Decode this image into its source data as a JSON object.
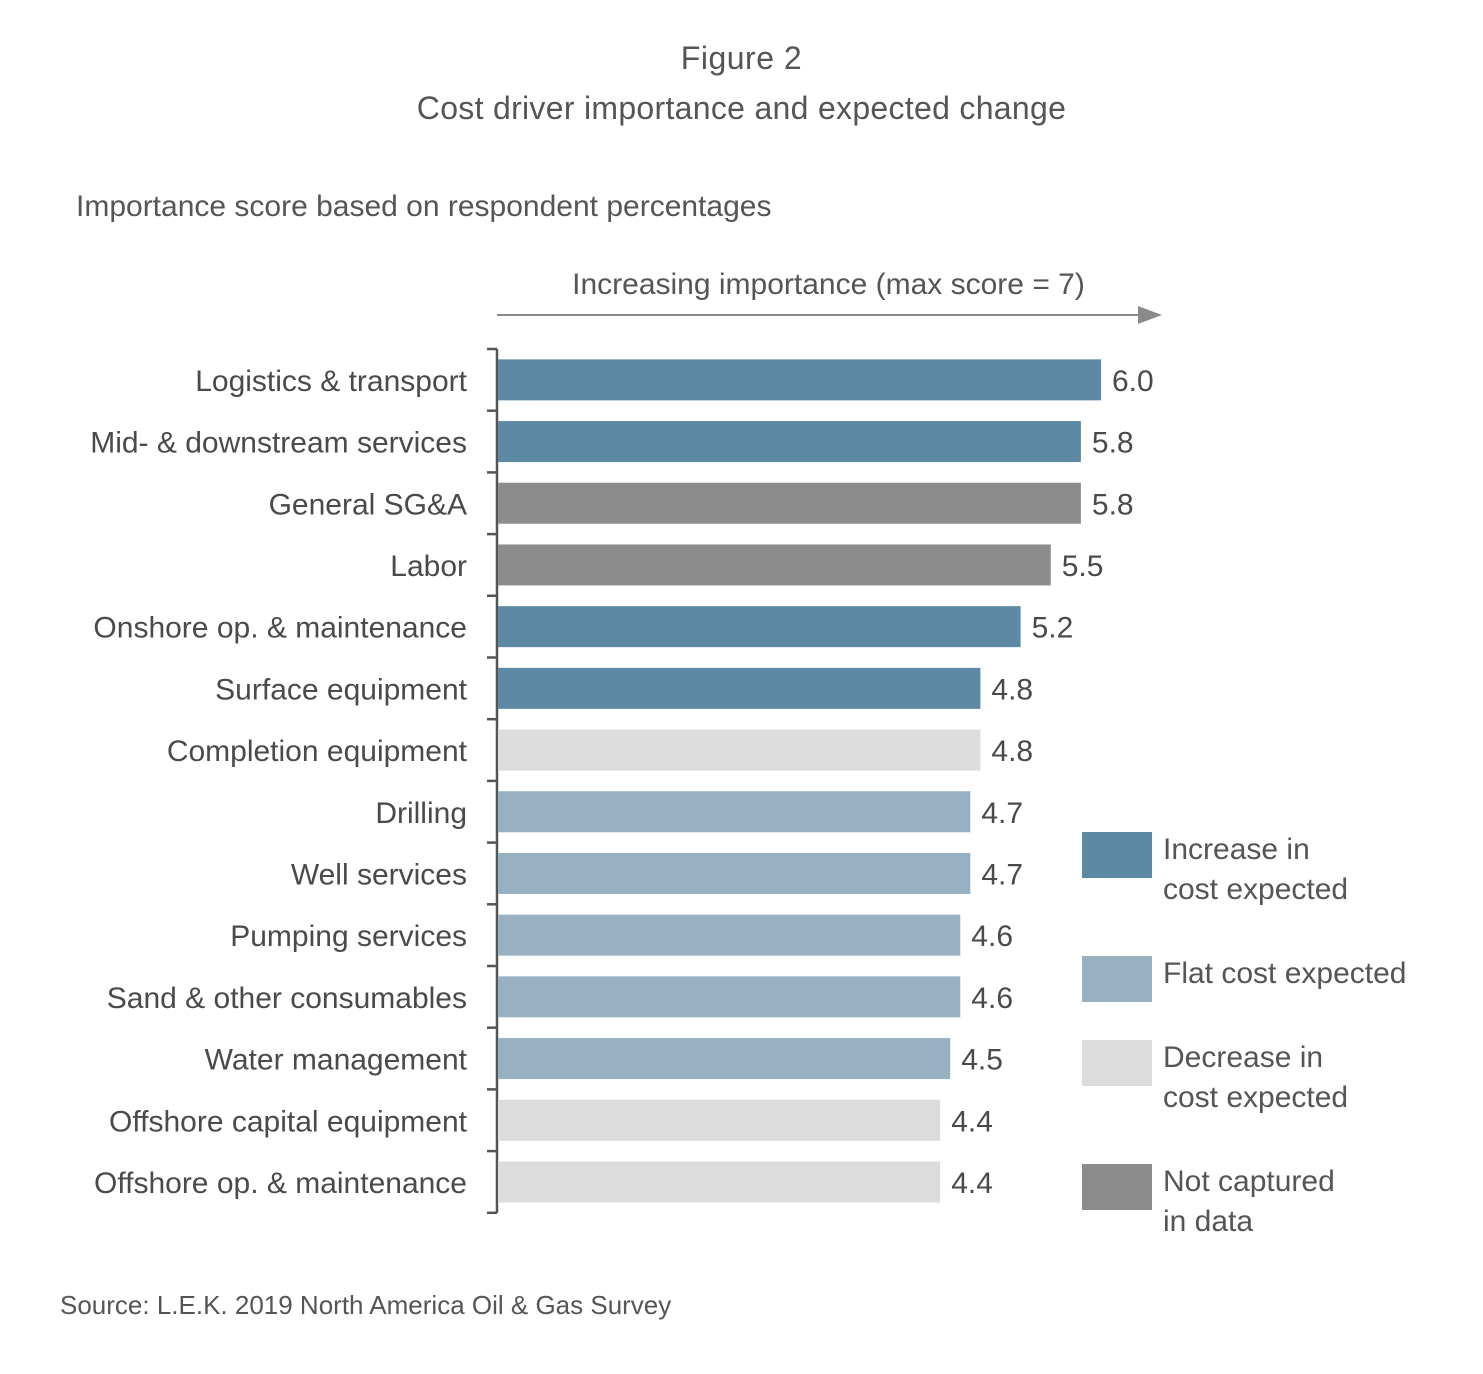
{
  "figure_label": "Figure 2",
  "title": "Cost driver importance and expected change",
  "subtitle": "Importance score based on respondent percentages",
  "source": "Source: L.E.K. 2019 North America Oil & Gas Survey",
  "colors": {
    "increase": "#5e89a5",
    "flat": "#97b1c2",
    "decrease": "#dcdcdc",
    "not_captured": "#8c8c8c"
  },
  "legend": [
    {
      "key": "increase",
      "line1": "Increase in",
      "line2": "cost expected"
    },
    {
      "key": "flat",
      "line1": "Flat cost expected",
      "line2": ""
    },
    {
      "key": "decrease",
      "line1": "Decrease in",
      "line2": "cost expected"
    },
    {
      "key": "not_captured",
      "line1": "Not captured",
      "line2": "in data"
    }
  ],
  "chart_data": {
    "type": "bar",
    "orientation": "horizontal",
    "axis_annotation": "Increasing importance (max score = 7)",
    "xlim": [
      0,
      7
    ],
    "grid": false,
    "legend_position": "right",
    "categories": [
      "Logistics & transport",
      "Mid- & downstream services",
      "General SG&A",
      "Labor",
      "Onshore op. & maintenance",
      "Surface equipment",
      "Completion equipment",
      "Drilling",
      "Well services",
      "Pumping services",
      "Sand & other consumables",
      "Water management",
      "Offshore capital equipment",
      "Offshore op. & maintenance"
    ],
    "values": [
      6.0,
      5.8,
      5.8,
      5.5,
      5.2,
      4.8,
      4.8,
      4.7,
      4.7,
      4.6,
      4.6,
      4.5,
      4.4,
      4.4
    ],
    "value_labels": [
      "6.0",
      "5.8",
      "5.8",
      "5.5",
      "5.2",
      "4.8",
      "4.8",
      "4.7",
      "4.7",
      "4.6",
      "4.6",
      "4.5",
      "4.4",
      "4.4"
    ],
    "groups": [
      "increase",
      "increase",
      "not_captured",
      "not_captured",
      "increase",
      "increase",
      "decrease",
      "flat",
      "flat",
      "flat",
      "flat",
      "flat",
      "decrease",
      "decrease"
    ]
  }
}
